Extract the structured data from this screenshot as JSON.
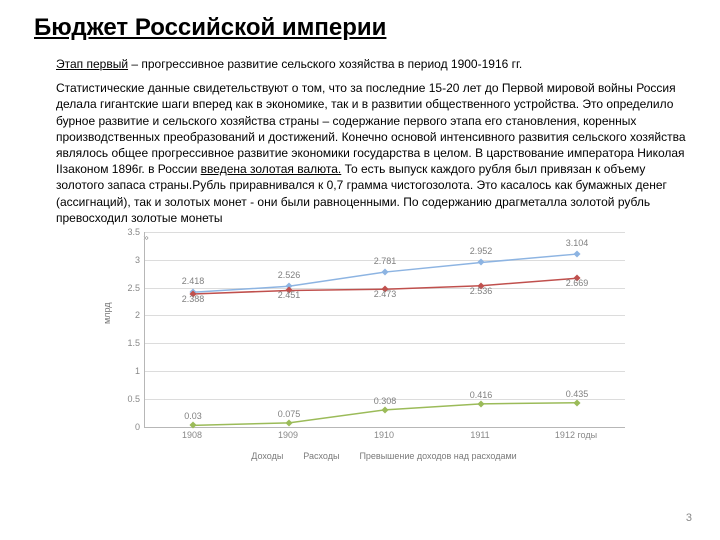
{
  "title": "Бюджет Российской империи",
  "subtitle_underlined": "Этап первый",
  "subtitle_rest": " – прогрессивное развитие сельского хозяйства в период 1900-1916 гг.",
  "body_before": "Статистические данные свидетельствуют о том, что за последние 15-20 лет до Первой мировой войны Россия делала гигантские шаги вперед как в экономике, так и в развитии общественного устройства. Это определило бурное развитие и сельского хозяйства страны – содержание первого этапа его становления, коренных производственных преобразований и достижений. Конечно основой интенсивного развития сельского хозяйства являлось общее прогрессивное развитие экономики государства в целом. В царствование императора Николая IIзаконом 1896г. в России ",
  "body_underlined": "введена золотая валюта.",
  "body_after": " То есть выпуск каждого рубля был привязан к объему золотого запаса страны.Рубль приравнивался к 0,7 грамма чистогозолота. Это касалось как бумажных денег (ассигнаций), так и золотых монет - они были равноценными. По содержанию драгметалла золотой рубль превосходил золотые монеты",
  "tick_marker": "»",
  "page_number": "3",
  "chart": {
    "type": "line",
    "ylabel": "млрд",
    "ymin": 0,
    "ymax": 3.5,
    "ytick_step": 0.5,
    "yticks": [
      "0",
      "0.5",
      "1",
      "1.5",
      "2",
      "2.5",
      "3",
      "3.5"
    ],
    "categories": [
      "1908",
      "1909",
      "1910",
      "1911",
      "1912 годы"
    ],
    "series": [
      {
        "name": "Доходы",
        "color": "#8db4e2",
        "values": [
          2.418,
          2.526,
          2.781,
          2.952,
          3.104
        ]
      },
      {
        "name": "Расходы",
        "color": "#c0504d",
        "values": [
          2.388,
          2.451,
          2.473,
          2.536,
          2.669
        ]
      },
      {
        "name": "Превышение доходов над расходами",
        "color": "#9bbb59",
        "values": [
          0.03,
          0.075,
          0.308,
          0.416,
          0.435
        ]
      }
    ],
    "grid_color": "#dcdcdc",
    "axis_color": "#b7b7b7",
    "label_color": "#888888",
    "background": "#ffffff",
    "value_fontsize": 9,
    "tick_fontsize": 9
  }
}
